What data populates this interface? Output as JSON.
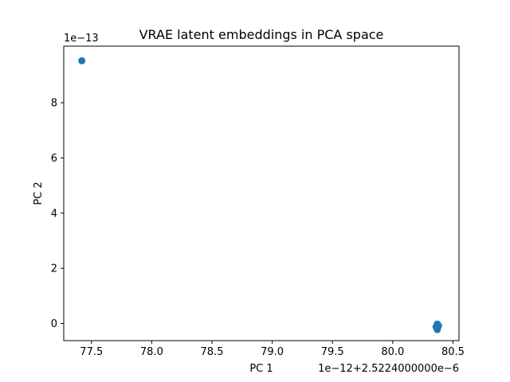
{
  "chart_data": {
    "type": "scatter",
    "title": "VRAE latent embeddings in PCA space",
    "xlabel": "PC 1",
    "ylabel": "PC 2",
    "x_offset_label": "1e−12+2.5224000000e−6",
    "y_offset_label": "1e−13",
    "xlim": [
      77.27,
      80.55
    ],
    "ylim": [
      -0.62,
      10.05
    ],
    "xticks": [
      77.5,
      78.0,
      78.5,
      79.0,
      79.5,
      80.0,
      80.5
    ],
    "xtick_labels": [
      "77.5",
      "78.0",
      "78.5",
      "79.0",
      "79.5",
      "80.0",
      "80.5"
    ],
    "yticks": [
      0,
      2,
      4,
      6,
      8
    ],
    "ytick_labels": [
      "0",
      "2",
      "4",
      "6",
      "8"
    ],
    "grid": false,
    "color": "#1f77b4",
    "series": [
      {
        "points": [
          [
            77.42,
            9.52
          ],
          [
            80.37,
            -0.02
          ],
          [
            80.37,
            -0.06
          ],
          [
            80.37,
            -0.1
          ],
          [
            80.37,
            -0.14
          ],
          [
            80.37,
            -0.18
          ],
          [
            80.37,
            -0.22
          ],
          [
            80.36,
            -0.12
          ],
          [
            80.38,
            -0.08
          ]
        ]
      }
    ]
  }
}
